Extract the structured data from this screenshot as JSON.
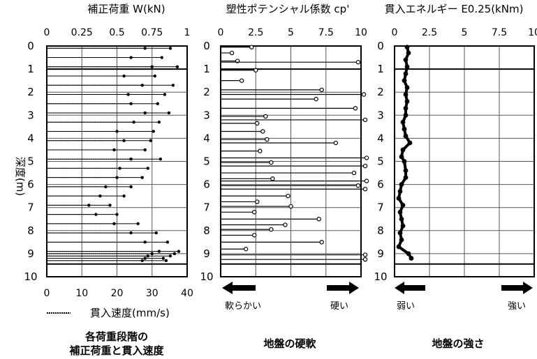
{
  "y_axis": {
    "label": "深度(m)",
    "ticks": [
      "0",
      "1",
      "2",
      "3",
      "4",
      "5",
      "6",
      "7",
      "8",
      "9",
      "10"
    ]
  },
  "panel1": {
    "title": "補正荷重 W(kN)",
    "top_ticks": [
      "0",
      "0.25",
      "0.5",
      "0.75",
      "1"
    ],
    "bottom_ticks": [
      "0",
      "10",
      "20",
      "30",
      "40"
    ],
    "bottom_label": "貫入速度(mm/s)",
    "caption_line1": "各荷重段階の",
    "caption_line2": "補正荷重と貫入速度"
  },
  "panel2": {
    "title": "塑性ポテンシャル係数 cp'",
    "top_ticks": [
      "0",
      "2.5",
      "5",
      "7.5",
      "10"
    ],
    "soft_label": "軟らかい",
    "hard_label": "硬い",
    "caption": "地盤の硬軟"
  },
  "panel3": {
    "title": "貫入エネルギー E0.25(kNm)",
    "top_ticks": [
      "0",
      "2.5",
      "5",
      "7.5",
      "10"
    ],
    "weak_label": "弱い",
    "strong_label": "強い",
    "caption": "地盤の強さ"
  },
  "colors": {
    "ink": "#000000",
    "grid": "#555555",
    "background": "#ffffff"
  },
  "chart_data": [
    {
      "type": "line",
      "title": "補正荷重 W(kN)",
      "ylabel": "深度(m)",
      "xlim": [
        0,
        1
      ],
      "ylim": [
        10,
        0
      ],
      "x2label": "貫入速度(mm/s)",
      "x2lim": [
        0,
        40
      ],
      "series": [
        {
          "name": "補正荷重",
          "x": [
            0.88,
            0.82,
            0.93,
            0.77,
            0.9,
            0.84,
            0.79,
            0.87,
            0.8,
            0.76,
            0.74,
            0.7,
            0.81,
            0.72,
            0.68,
            0.6,
            0.55,
            0.45,
            0.5,
            0.65,
            0.78,
            0.86,
            0.94,
            0.91,
            0.88,
            0.83,
            0.85
          ],
          "y": [
            0.1,
            0.5,
            0.9,
            1.3,
            1.7,
            2.1,
            2.5,
            2.9,
            3.3,
            3.7,
            4.1,
            4.5,
            4.9,
            5.3,
            5.7,
            6.1,
            6.5,
            6.9,
            7.3,
            7.7,
            8.1,
            8.5,
            8.9,
            9.0,
            9.1,
            9.2,
            9.3
          ]
        },
        {
          "name": "貫入速度",
          "x": [
            0.7,
            0.6,
            0.75,
            0.55,
            0.68,
            0.58,
            0.6,
            0.7,
            0.62,
            0.5,
            0.55,
            0.48,
            0.6,
            0.52,
            0.5,
            0.42,
            0.38,
            0.3,
            0.35,
            0.48,
            0.6,
            0.7,
            0.8,
            0.75,
            0.72,
            0.7,
            0.68
          ],
          "y": [
            0.1,
            0.5,
            0.9,
            1.3,
            1.7,
            2.1,
            2.5,
            2.9,
            3.3,
            3.7,
            4.1,
            4.5,
            4.9,
            5.3,
            5.7,
            6.1,
            6.5,
            6.9,
            7.3,
            7.7,
            8.1,
            8.5,
            8.9,
            9.0,
            9.1,
            9.2,
            9.3
          ]
        }
      ]
    },
    {
      "type": "line",
      "title": "塑性ポテンシャル係数 cp'",
      "ylabel": "深度(m)",
      "xlim": [
        0,
        10
      ],
      "ylim": [
        10,
        0
      ],
      "series": [
        {
          "name": "cp'",
          "x": [
            2.2,
            0.8,
            1.2,
            9.8,
            2.5,
            1.5,
            7.2,
            10.2,
            6.8,
            9.6,
            3.2,
            10.3,
            2.6,
            3,
            3.3,
            8.2,
            2.8,
            10.4,
            3.6,
            10.3,
            9.5,
            3.7,
            10.4,
            9.8,
            10.3,
            4.8,
            2.6,
            5,
            2.4,
            7,
            4.6,
            3.6,
            2.4,
            7.2,
            1.8,
            10.3,
            10.3
          ],
          "y": [
            0.05,
            0.3,
            0.65,
            0.7,
            1.05,
            1.5,
            1.9,
            2.1,
            2.3,
            2.7,
            3.05,
            3.2,
            3.35,
            3.7,
            4.05,
            4.2,
            4.55,
            4.85,
            5.05,
            5.2,
            5.5,
            5.75,
            5.85,
            6.05,
            6.2,
            6.5,
            6.75,
            6.95,
            7.2,
            7.5,
            7.75,
            7.95,
            8.2,
            8.5,
            8.8,
            9.05,
            9.25
          ]
        }
      ]
    },
    {
      "type": "line",
      "title": "貫入エネルギー E0.25(kNm)",
      "ylabel": "深度(m)",
      "xlim": [
        0,
        10
      ],
      "ylim": [
        10,
        0
      ],
      "series": [
        {
          "name": "E0.25",
          "x": [
            0.9,
            1.0,
            0.8,
            0.9,
            0.8,
            0.7,
            0.9,
            0.8,
            0.9,
            0.8,
            0.8,
            0.6,
            0.7,
            0.8,
            1.1,
            0.6,
            0.5,
            0.7,
            0.8,
            0.8,
            0.5,
            0.4,
            0.3,
            0.6,
            0.4,
            0.5,
            0.6,
            0.4,
            0.5,
            0.3,
            1.0,
            1.2
          ],
          "y": [
            0.05,
            0.3,
            0.6,
            0.9,
            1.2,
            1.5,
            1.8,
            2.1,
            2.4,
            2.7,
            3.0,
            3.3,
            3.6,
            3.9,
            4.2,
            4.5,
            4.8,
            5.0,
            5.4,
            5.7,
            6.0,
            6.3,
            6.6,
            6.9,
            7.2,
            7.5,
            7.8,
            8.1,
            8.4,
            8.7,
            9.0,
            9.2
          ]
        }
      ]
    }
  ]
}
